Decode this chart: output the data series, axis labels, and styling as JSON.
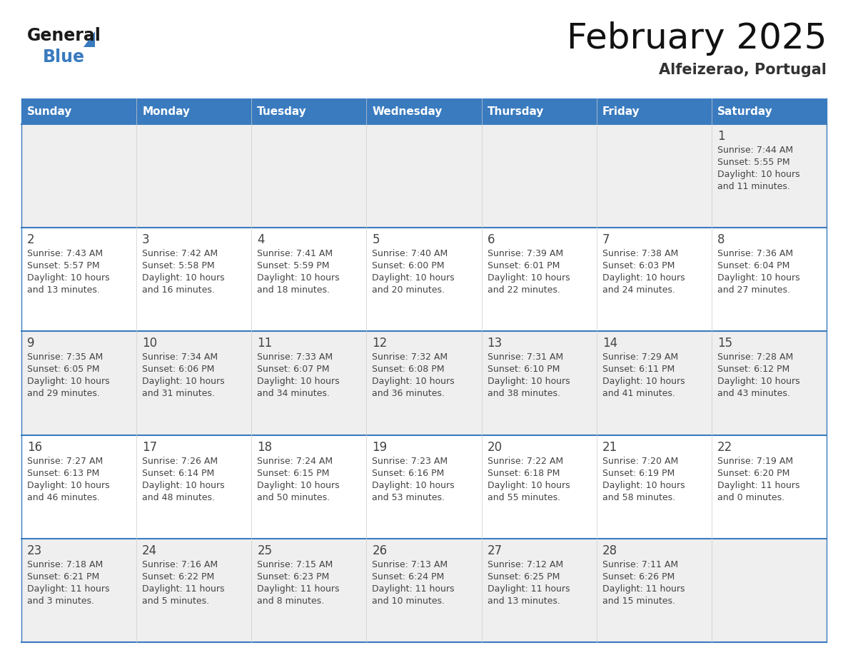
{
  "title": "February 2025",
  "subtitle": "Alfeizerao, Portugal",
  "header_color": "#3a7bbf",
  "header_text_color": "#ffffff",
  "days_of_week": [
    "Sunday",
    "Monday",
    "Tuesday",
    "Wednesday",
    "Thursday",
    "Friday",
    "Saturday"
  ],
  "background_color": "#ffffff",
  "cell_bg_even": "#efefef",
  "cell_bg_odd": "#ffffff",
  "divider_color": "#3a7bbf",
  "text_color": "#444444",
  "day_number_color": "#444444",
  "logo_text_color": "#1a1a1a",
  "logo_blue_color": "#3a7bbf",
  "calendar_data": [
    [
      null,
      null,
      null,
      null,
      null,
      null,
      {
        "day": "1",
        "sunrise": "7:44 AM",
        "sunset": "5:55 PM",
        "daylight_h": "10 hours",
        "daylight_m": "and 11 minutes."
      }
    ],
    [
      {
        "day": "2",
        "sunrise": "7:43 AM",
        "sunset": "5:57 PM",
        "daylight_h": "10 hours",
        "daylight_m": "and 13 minutes."
      },
      {
        "day": "3",
        "sunrise": "7:42 AM",
        "sunset": "5:58 PM",
        "daylight_h": "10 hours",
        "daylight_m": "and 16 minutes."
      },
      {
        "day": "4",
        "sunrise": "7:41 AM",
        "sunset": "5:59 PM",
        "daylight_h": "10 hours",
        "daylight_m": "and 18 minutes."
      },
      {
        "day": "5",
        "sunrise": "7:40 AM",
        "sunset": "6:00 PM",
        "daylight_h": "10 hours",
        "daylight_m": "and 20 minutes."
      },
      {
        "day": "6",
        "sunrise": "7:39 AM",
        "sunset": "6:01 PM",
        "daylight_h": "10 hours",
        "daylight_m": "and 22 minutes."
      },
      {
        "day": "7",
        "sunrise": "7:38 AM",
        "sunset": "6:03 PM",
        "daylight_h": "10 hours",
        "daylight_m": "and 24 minutes."
      },
      {
        "day": "8",
        "sunrise": "7:36 AM",
        "sunset": "6:04 PM",
        "daylight_h": "10 hours",
        "daylight_m": "and 27 minutes."
      }
    ],
    [
      {
        "day": "9",
        "sunrise": "7:35 AM",
        "sunset": "6:05 PM",
        "daylight_h": "10 hours",
        "daylight_m": "and 29 minutes."
      },
      {
        "day": "10",
        "sunrise": "7:34 AM",
        "sunset": "6:06 PM",
        "daylight_h": "10 hours",
        "daylight_m": "and 31 minutes."
      },
      {
        "day": "11",
        "sunrise": "7:33 AM",
        "sunset": "6:07 PM",
        "daylight_h": "10 hours",
        "daylight_m": "and 34 minutes."
      },
      {
        "day": "12",
        "sunrise": "7:32 AM",
        "sunset": "6:08 PM",
        "daylight_h": "10 hours",
        "daylight_m": "and 36 minutes."
      },
      {
        "day": "13",
        "sunrise": "7:31 AM",
        "sunset": "6:10 PM",
        "daylight_h": "10 hours",
        "daylight_m": "and 38 minutes."
      },
      {
        "day": "14",
        "sunrise": "7:29 AM",
        "sunset": "6:11 PM",
        "daylight_h": "10 hours",
        "daylight_m": "and 41 minutes."
      },
      {
        "day": "15",
        "sunrise": "7:28 AM",
        "sunset": "6:12 PM",
        "daylight_h": "10 hours",
        "daylight_m": "and 43 minutes."
      }
    ],
    [
      {
        "day": "16",
        "sunrise": "7:27 AM",
        "sunset": "6:13 PM",
        "daylight_h": "10 hours",
        "daylight_m": "and 46 minutes."
      },
      {
        "day": "17",
        "sunrise": "7:26 AM",
        "sunset": "6:14 PM",
        "daylight_h": "10 hours",
        "daylight_m": "and 48 minutes."
      },
      {
        "day": "18",
        "sunrise": "7:24 AM",
        "sunset": "6:15 PM",
        "daylight_h": "10 hours",
        "daylight_m": "and 50 minutes."
      },
      {
        "day": "19",
        "sunrise": "7:23 AM",
        "sunset": "6:16 PM",
        "daylight_h": "10 hours",
        "daylight_m": "and 53 minutes."
      },
      {
        "day": "20",
        "sunrise": "7:22 AM",
        "sunset": "6:18 PM",
        "daylight_h": "10 hours",
        "daylight_m": "and 55 minutes."
      },
      {
        "day": "21",
        "sunrise": "7:20 AM",
        "sunset": "6:19 PM",
        "daylight_h": "10 hours",
        "daylight_m": "and 58 minutes."
      },
      {
        "day": "22",
        "sunrise": "7:19 AM",
        "sunset": "6:20 PM",
        "daylight_h": "11 hours",
        "daylight_m": "and 0 minutes."
      }
    ],
    [
      {
        "day": "23",
        "sunrise": "7:18 AM",
        "sunset": "6:21 PM",
        "daylight_h": "11 hours",
        "daylight_m": "and 3 minutes."
      },
      {
        "day": "24",
        "sunrise": "7:16 AM",
        "sunset": "6:22 PM",
        "daylight_h": "11 hours",
        "daylight_m": "and 5 minutes."
      },
      {
        "day": "25",
        "sunrise": "7:15 AM",
        "sunset": "6:23 PM",
        "daylight_h": "11 hours",
        "daylight_m": "and 8 minutes."
      },
      {
        "day": "26",
        "sunrise": "7:13 AM",
        "sunset": "6:24 PM",
        "daylight_h": "11 hours",
        "daylight_m": "and 10 minutes."
      },
      {
        "day": "27",
        "sunrise": "7:12 AM",
        "sunset": "6:25 PM",
        "daylight_h": "11 hours",
        "daylight_m": "and 13 minutes."
      },
      {
        "day": "28",
        "sunrise": "7:11 AM",
        "sunset": "6:26 PM",
        "daylight_h": "11 hours",
        "daylight_m": "and 15 minutes."
      },
      null
    ]
  ]
}
